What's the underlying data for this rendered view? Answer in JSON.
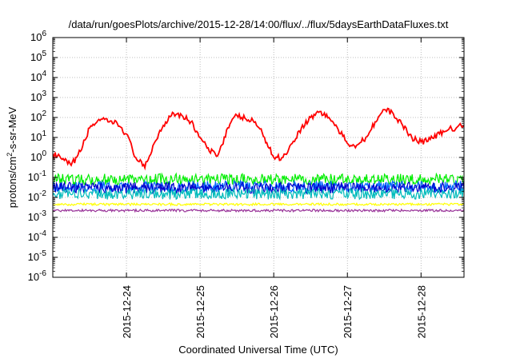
{
  "chart_data": {
    "type": "line",
    "title": "/data/run/goesPlots/archive/2015-12-28/14:00/flux/../flux/5daysEarthDataFluxes.txt",
    "xlabel": "Coordinated Universal Time (UTC)",
    "ylabel": {
      "base": "protons/cm",
      "sup": "2",
      "rest": "-s-sr-MeV"
    },
    "y_scale": "log",
    "ylim_exp": [
      -6,
      6
    ],
    "xlim": [
      "2015-12-23T00:00",
      "2015-12-28T14:00"
    ],
    "x_ticks": [
      "2015-12-24",
      "2015-12-25",
      "2015-12-26",
      "2015-12-27",
      "2015-12-28"
    ],
    "grid": true,
    "series": [
      {
        "color": "#ff0000",
        "points": [
          [
            "2015-12-23T00:00",
            1.5
          ],
          [
            "2015-12-23T03:00",
            0.8
          ],
          [
            "2015-12-23T06:00",
            0.4
          ],
          [
            "2015-12-23T09:00",
            2
          ],
          [
            "2015-12-23T12:00",
            30
          ],
          [
            "2015-12-23T15:00",
            80
          ],
          [
            "2015-12-23T18:00",
            60
          ],
          [
            "2015-12-23T21:00",
            50
          ],
          [
            "2015-12-24T00:00",
            15
          ],
          [
            "2015-12-24T03:00",
            1
          ],
          [
            "2015-12-24T06:00",
            0.3
          ],
          [
            "2015-12-24T09:00",
            5
          ],
          [
            "2015-12-24T12:00",
            40
          ],
          [
            "2015-12-24T15:00",
            180
          ],
          [
            "2015-12-24T18:00",
            130
          ],
          [
            "2015-12-24T21:00",
            60
          ],
          [
            "2015-12-25T00:00",
            10
          ],
          [
            "2015-12-25T03:00",
            2
          ],
          [
            "2015-12-25T06:00",
            1.5
          ],
          [
            "2015-12-25T09:00",
            30
          ],
          [
            "2015-12-25T12:00",
            130
          ],
          [
            "2015-12-25T15:00",
            80
          ],
          [
            "2015-12-25T18:00",
            60
          ],
          [
            "2015-12-25T21:00",
            10
          ],
          [
            "2015-12-26T00:00",
            1
          ],
          [
            "2015-12-26T03:00",
            1
          ],
          [
            "2015-12-26T06:00",
            5
          ],
          [
            "2015-12-26T09:00",
            30
          ],
          [
            "2015-12-26T12:00",
            100
          ],
          [
            "2015-12-26T15:00",
            200
          ],
          [
            "2015-12-26T18:00",
            100
          ],
          [
            "2015-12-26T21:00",
            25
          ],
          [
            "2015-12-27T00:00",
            5
          ],
          [
            "2015-12-27T03:00",
            4
          ],
          [
            "2015-12-27T06:00",
            10
          ],
          [
            "2015-12-27T09:00",
            60
          ],
          [
            "2015-12-27T12:00",
            250
          ],
          [
            "2015-12-27T15:00",
            150
          ],
          [
            "2015-12-27T18:00",
            40
          ],
          [
            "2015-12-27T21:00",
            10
          ],
          [
            "2015-12-28T00:00",
            6
          ],
          [
            "2015-12-28T03:00",
            8
          ],
          [
            "2015-12-28T06:00",
            15
          ],
          [
            "2015-12-28T09:00",
            25
          ],
          [
            "2015-12-28T14:00",
            40
          ]
        ]
      },
      {
        "color": "#00ee00",
        "points": [
          [
            "2015-12-23T00:00",
            0.08
          ],
          [
            "2015-12-28T14:00",
            0.08
          ]
        ]
      },
      {
        "color": "#0066ff",
        "points": [
          [
            "2015-12-23T00:00",
            0.035
          ],
          [
            "2015-12-28T14:00",
            0.035
          ]
        ]
      },
      {
        "color": "#0000cc",
        "points": [
          [
            "2015-12-23T00:00",
            0.03
          ],
          [
            "2015-12-28T14:00",
            0.03
          ]
        ]
      },
      {
        "color": "#00bbbb",
        "points": [
          [
            "2015-12-23T00:00",
            0.015
          ],
          [
            "2015-12-28T14:00",
            0.015
          ]
        ]
      },
      {
        "color": "#ffff00",
        "points": [
          [
            "2015-12-23T00:00",
            0.0045
          ],
          [
            "2015-12-28T14:00",
            0.0045
          ]
        ]
      },
      {
        "color": "#993399",
        "points": [
          [
            "2015-12-23T00:00",
            0.0022
          ],
          [
            "2015-12-28T14:00",
            0.0022
          ]
        ]
      }
    ]
  }
}
